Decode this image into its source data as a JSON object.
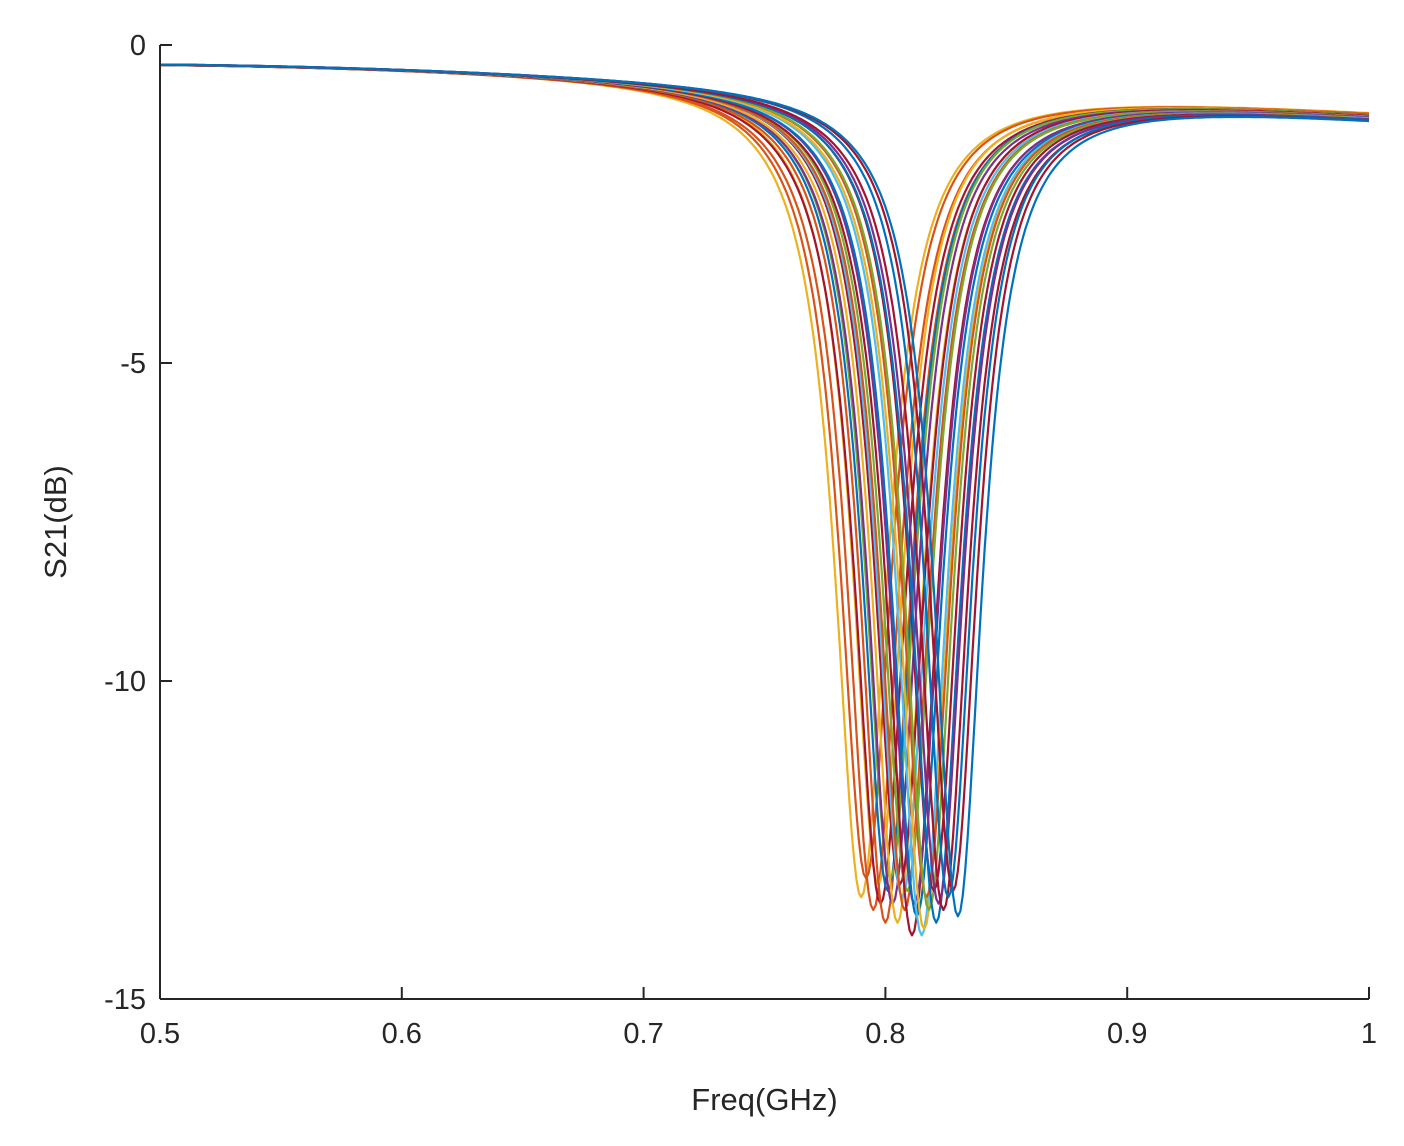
{
  "chart_data": {
    "type": "line",
    "title": "",
    "xlabel": "Freq(GHz)",
    "ylabel": "S21(dB)",
    "xlim": [
      0.5,
      1.0
    ],
    "ylim": [
      -15,
      0
    ],
    "xticks": [
      0.5,
      0.6,
      0.7,
      0.8,
      0.9,
      1.0
    ],
    "xtick_labels": [
      "0.5",
      "0.6",
      "0.7",
      "0.8",
      "0.9",
      "1"
    ],
    "yticks": [
      0,
      -5,
      -10,
      -15
    ],
    "ytick_labels": [
      "0",
      "-5",
      "-10",
      "-15"
    ],
    "grid": false,
    "legend": "none",
    "colors": [
      "#0072BD",
      "#D95319",
      "#EDB120",
      "#7E2F8E",
      "#77AC30",
      "#4DBEEE",
      "#A2142F"
    ],
    "series": [
      {
        "color": "#EDB120",
        "resonance_ghz": 0.79,
        "min_db": -13.4,
        "width_ghz": 0.04,
        "baseline_low_db": -0.29,
        "baseline_high_db": -1.02
      },
      {
        "color": "#D95319",
        "resonance_ghz": 0.792,
        "min_db": -13.1,
        "width_ghz": 0.04,
        "baseline_low_db": -0.29,
        "baseline_high_db": -1.03
      },
      {
        "color": "#D95319",
        "resonance_ghz": 0.795,
        "min_db": -13.6,
        "width_ghz": 0.04,
        "baseline_low_db": -0.29,
        "baseline_high_db": -1.03
      },
      {
        "color": "#EDB120",
        "resonance_ghz": 0.797,
        "min_db": -13.2,
        "width_ghz": 0.039,
        "baseline_low_db": -0.29,
        "baseline_high_db": -1.04
      },
      {
        "color": "#A2142F",
        "resonance_ghz": 0.798,
        "min_db": -13.5,
        "width_ghz": 0.04,
        "baseline_low_db": -0.29,
        "baseline_high_db": -1.04
      },
      {
        "color": "#D95319",
        "resonance_ghz": 0.8,
        "min_db": -13.8,
        "width_ghz": 0.039,
        "baseline_low_db": -0.29,
        "baseline_high_db": -1.05
      },
      {
        "color": "#0072BD",
        "resonance_ghz": 0.801,
        "min_db": -13.3,
        "width_ghz": 0.039,
        "baseline_low_db": -0.29,
        "baseline_high_db": -1.05
      },
      {
        "color": "#77AC30",
        "resonance_ghz": 0.802,
        "min_db": -13.1,
        "width_ghz": 0.039,
        "baseline_low_db": -0.29,
        "baseline_high_db": -1.05
      },
      {
        "color": "#7E2F8E",
        "resonance_ghz": 0.803,
        "min_db": -13.5,
        "width_ghz": 0.039,
        "baseline_low_db": -0.29,
        "baseline_high_db": -1.06
      },
      {
        "color": "#EDB120",
        "resonance_ghz": 0.805,
        "min_db": -13.8,
        "width_ghz": 0.039,
        "baseline_low_db": -0.29,
        "baseline_high_db": -1.06
      },
      {
        "color": "#A2142F",
        "resonance_ghz": 0.806,
        "min_db": -13.2,
        "width_ghz": 0.039,
        "baseline_low_db": -0.29,
        "baseline_high_db": -1.06
      },
      {
        "color": "#4DBEEE",
        "resonance_ghz": 0.807,
        "min_db": -13.4,
        "width_ghz": 0.039,
        "baseline_low_db": -0.29,
        "baseline_high_db": -1.07
      },
      {
        "color": "#D95319",
        "resonance_ghz": 0.808,
        "min_db": -13.6,
        "width_ghz": 0.039,
        "baseline_low_db": -0.29,
        "baseline_high_db": -1.07
      },
      {
        "color": "#77AC30",
        "resonance_ghz": 0.809,
        "min_db": -13.3,
        "width_ghz": 0.039,
        "baseline_low_db": -0.29,
        "baseline_high_db": -1.08
      },
      {
        "color": "#A2142F",
        "resonance_ghz": 0.811,
        "min_db": -14.0,
        "width_ghz": 0.039,
        "baseline_low_db": -0.29,
        "baseline_high_db": -1.08
      },
      {
        "color": "#7E2F8E",
        "resonance_ghz": 0.812,
        "min_db": -13.5,
        "width_ghz": 0.039,
        "baseline_low_db": -0.29,
        "baseline_high_db": -1.08
      },
      {
        "color": "#0072BD",
        "resonance_ghz": 0.813,
        "min_db": -13.7,
        "width_ghz": 0.039,
        "baseline_low_db": -0.29,
        "baseline_high_db": -1.09
      },
      {
        "color": "#4DBEEE",
        "resonance_ghz": 0.815,
        "min_db": -14.0,
        "width_ghz": 0.038,
        "baseline_low_db": -0.29,
        "baseline_high_db": -1.09
      },
      {
        "color": "#EDB120",
        "resonance_ghz": 0.816,
        "min_db": -13.9,
        "width_ghz": 0.038,
        "baseline_low_db": -0.29,
        "baseline_high_db": -1.1
      },
      {
        "color": "#D95319",
        "resonance_ghz": 0.817,
        "min_db": -13.4,
        "width_ghz": 0.038,
        "baseline_low_db": -0.29,
        "baseline_high_db": -1.1
      },
      {
        "color": "#77AC30",
        "resonance_ghz": 0.818,
        "min_db": -13.6,
        "width_ghz": 0.038,
        "baseline_low_db": -0.29,
        "baseline_high_db": -1.1
      },
      {
        "color": "#A2142F",
        "resonance_ghz": 0.82,
        "min_db": -13.3,
        "width_ghz": 0.038,
        "baseline_low_db": -0.29,
        "baseline_high_db": -1.11
      },
      {
        "color": "#0072BD",
        "resonance_ghz": 0.821,
        "min_db": -13.8,
        "width_ghz": 0.038,
        "baseline_low_db": -0.29,
        "baseline_high_db": -1.11
      },
      {
        "color": "#7E2F8E",
        "resonance_ghz": 0.822,
        "min_db": -13.5,
        "width_ghz": 0.038,
        "baseline_low_db": -0.29,
        "baseline_high_db": -1.11
      },
      {
        "color": "#A2142F",
        "resonance_ghz": 0.824,
        "min_db": -13.6,
        "width_ghz": 0.038,
        "baseline_low_db": -0.29,
        "baseline_high_db": -1.12
      },
      {
        "color": "#0072BD",
        "resonance_ghz": 0.826,
        "min_db": -13.4,
        "width_ghz": 0.037,
        "baseline_low_db": -0.29,
        "baseline_high_db": -1.12
      },
      {
        "color": "#A2142F",
        "resonance_ghz": 0.828,
        "min_db": -13.3,
        "width_ghz": 0.037,
        "baseline_low_db": -0.29,
        "baseline_high_db": -1.13
      },
      {
        "color": "#0072BD",
        "resonance_ghz": 0.83,
        "min_db": -13.7,
        "width_ghz": 0.037,
        "baseline_low_db": -0.29,
        "baseline_high_db": -1.13
      }
    ]
  }
}
